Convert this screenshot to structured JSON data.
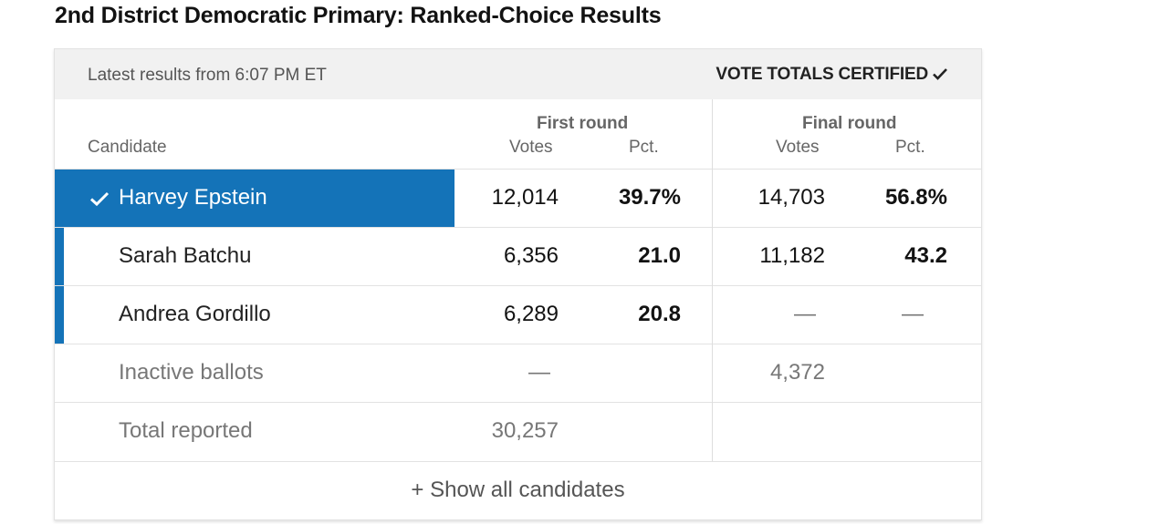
{
  "title": "2nd District Democratic Primary: Ranked-Choice Results",
  "updated": "Latest results from 6:07 PM ET",
  "certified": "VOTE TOTALS CERTIFIED",
  "headers": {
    "candidate": "Candidate",
    "first_round": "First round",
    "final_round": "Final round",
    "votes": "Votes",
    "pct": "Pct."
  },
  "rows": [
    {
      "name": "Harvey Epstein",
      "first_votes": "12,014",
      "first_pct": "39.7%",
      "final_votes": "14,703",
      "final_pct": "56.8%",
      "winner": true
    },
    {
      "name": "Sarah Batchu",
      "first_votes": "6,356",
      "first_pct": "21.0",
      "final_votes": "11,182",
      "final_pct": "43.2"
    },
    {
      "name": "Andrea Gordillo",
      "first_votes": "6,289",
      "first_pct": "20.8",
      "final_votes": "—",
      "final_pct": "—"
    },
    {
      "name": "Inactive ballots",
      "first_votes": "—",
      "final_votes": "4,372"
    },
    {
      "name": "Total reported",
      "first_votes": "30,257"
    }
  ],
  "show_all": "+ Show all candidates",
  "colors": {
    "accent": "#1473b8"
  }
}
